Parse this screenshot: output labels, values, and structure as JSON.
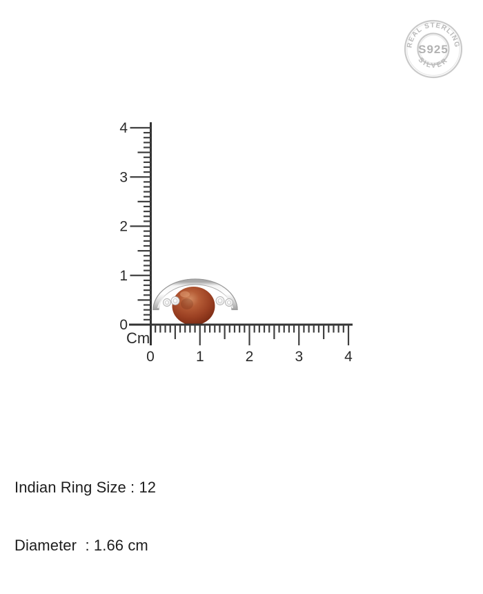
{
  "stamp": {
    "arc_top": "REAL STERLING",
    "center": "S925",
    "arc_bottom": "SILVER",
    "color": "#c9c9c9"
  },
  "ruler": {
    "unit": "Cm",
    "vertical_labels": [
      "0",
      "1",
      "2",
      "3",
      "4"
    ],
    "horizontal_labels": [
      "0",
      "1",
      "2",
      "3",
      "4"
    ],
    "range_cm": [
      0,
      4
    ]
  },
  "product": {
    "pearl_color": "#9c4123",
    "metal_color": "#d9d9d9"
  },
  "details": {
    "ring_size": "Indian Ring Size : 12",
    "diameter": "Diameter  : 1.66 cm"
  }
}
